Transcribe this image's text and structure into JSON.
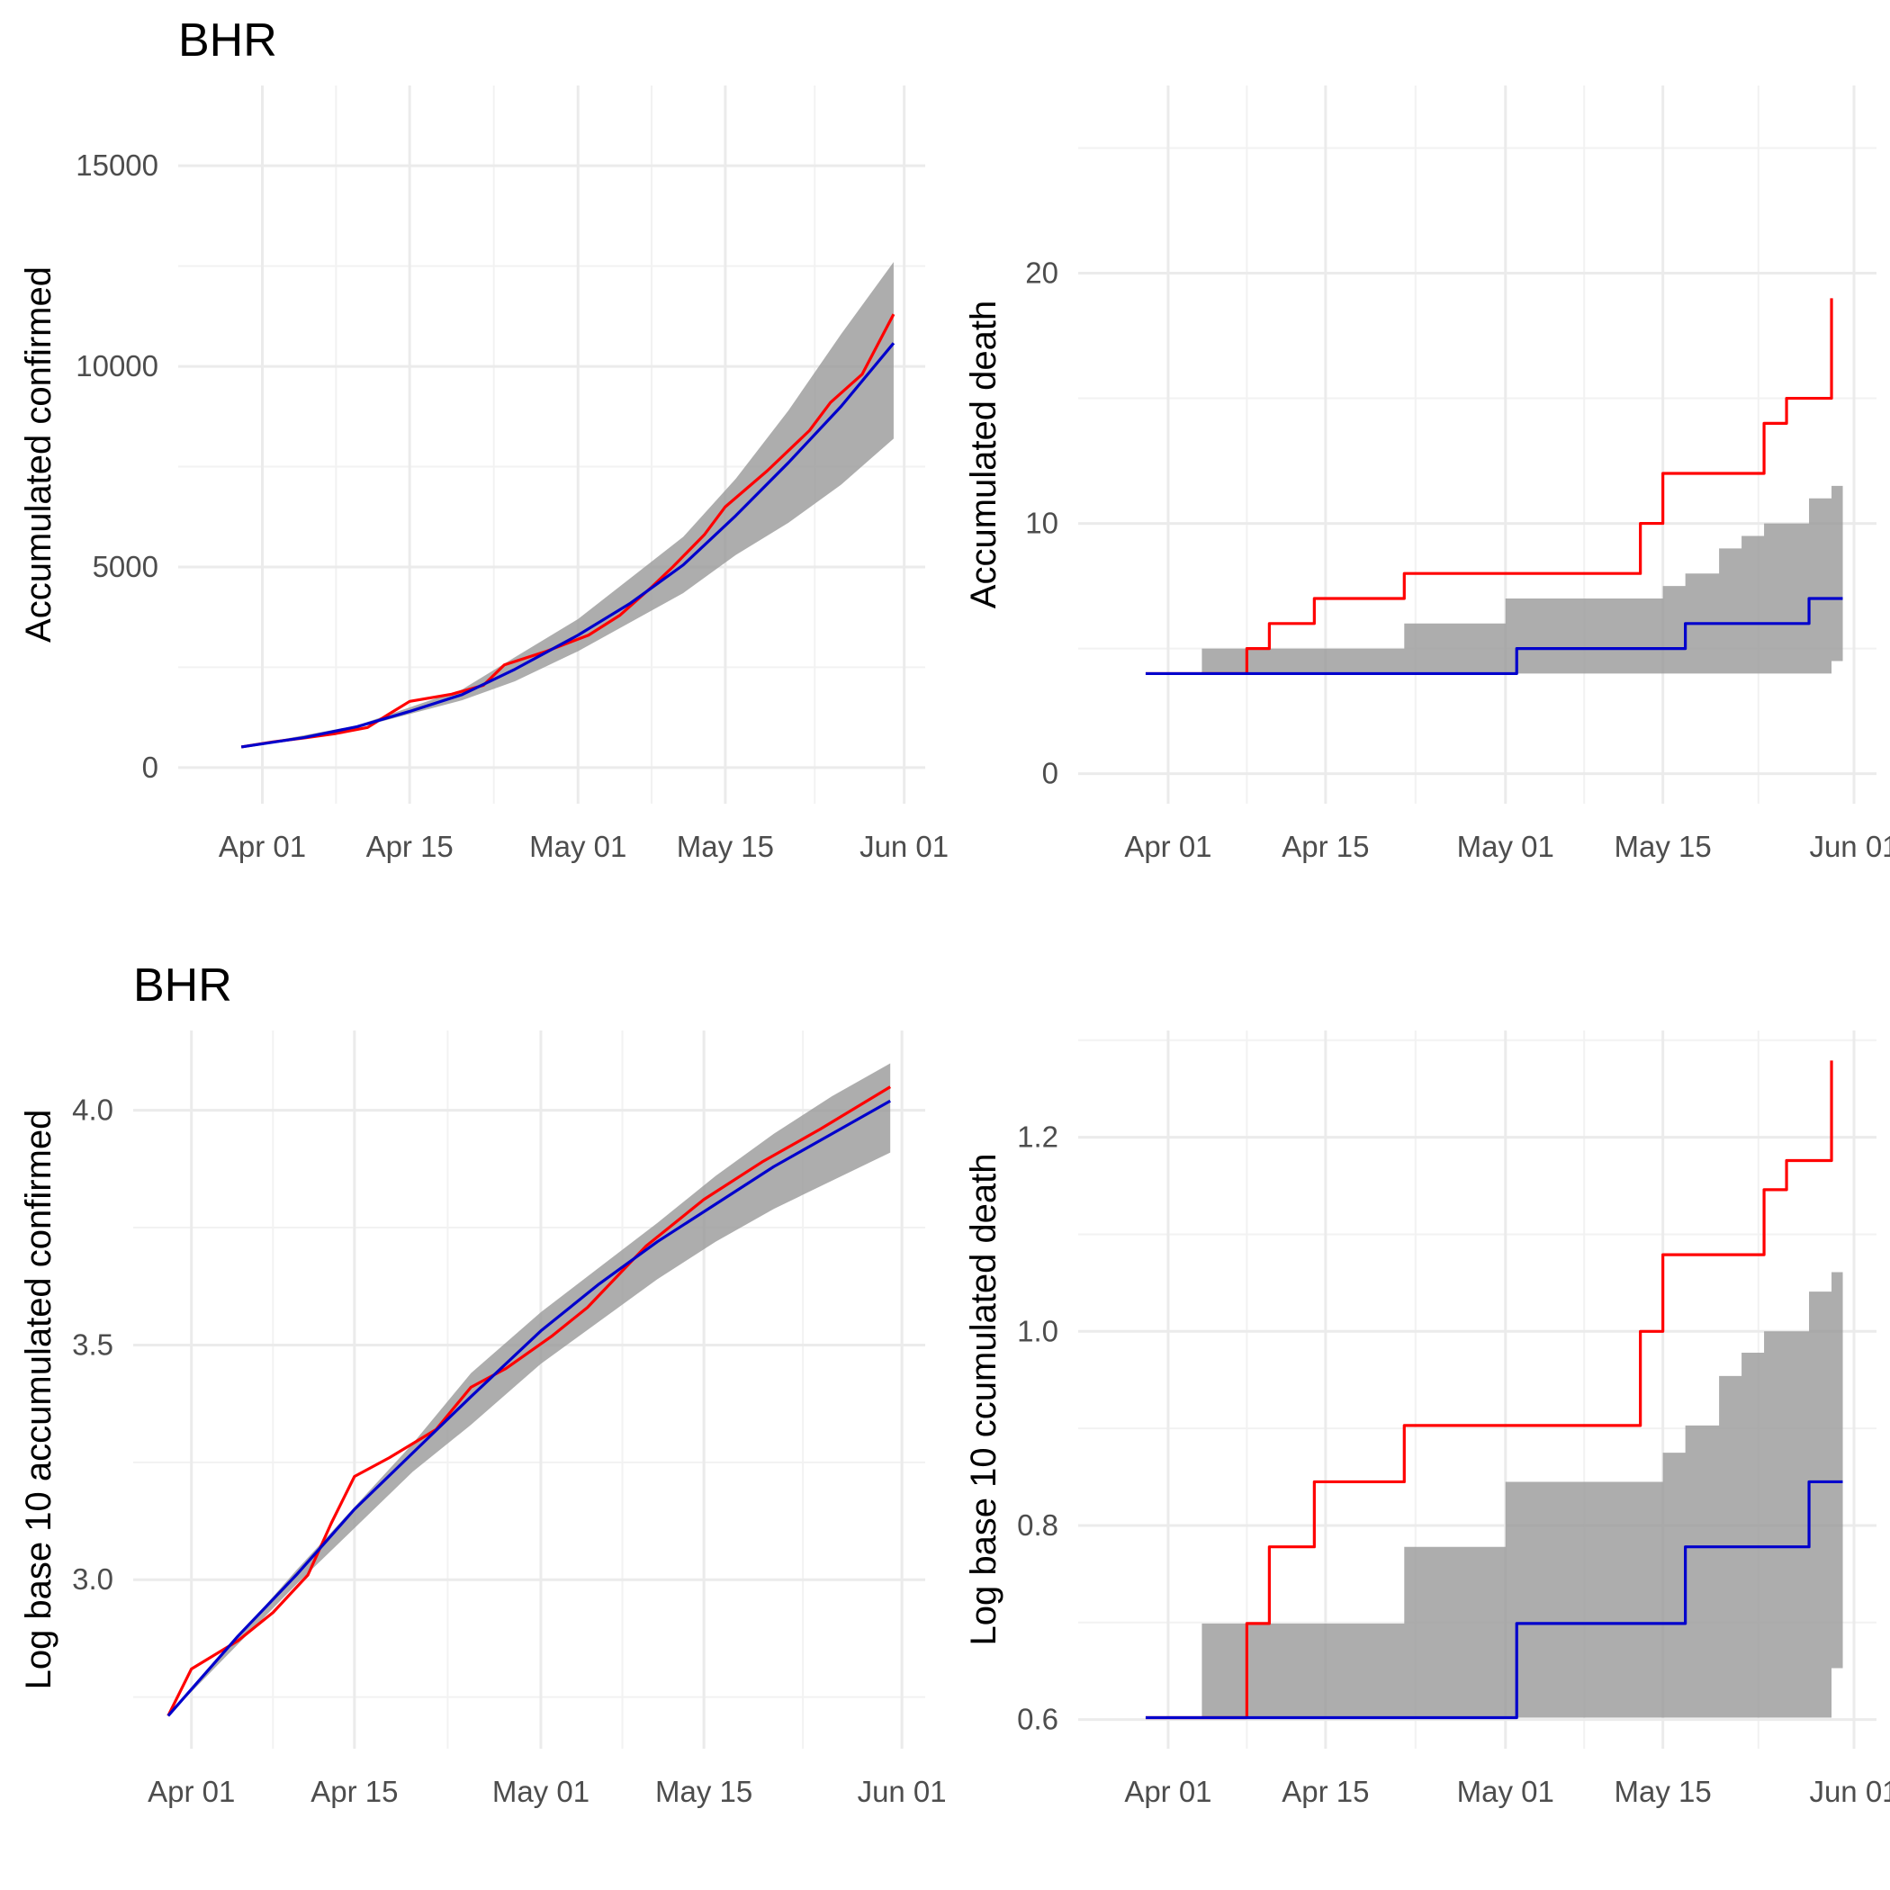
{
  "colors": {
    "observed": "#ff0000",
    "fitted": "#0000cc",
    "band": "#999999",
    "grid": "#ebebeb",
    "tick_text": "#4d4d4d"
  },
  "chart_data": [
    {
      "type": "line",
      "title": "BHR",
      "ylabel": "Accumulated confirmed",
      "xlim": [
        "2020-03-24",
        "2020-06-03"
      ],
      "ylim": [
        -900,
        17000
      ],
      "x_ticks": [
        "Apr 01",
        "Apr 15",
        "May 01",
        "May 15",
        "Jun 01"
      ],
      "x_tick_dates": [
        "2020-04-01",
        "2020-04-15",
        "2020-05-01",
        "2020-05-15",
        "2020-06-01"
      ],
      "y_ticks": [
        0,
        5000,
        10000,
        15000
      ],
      "y_tick_labels": [
        "0",
        "5000",
        "10000",
        "15000"
      ],
      "series": [
        {
          "role": "observed",
          "x": [
            "2020-03-30",
            "2020-04-02",
            "2020-04-05",
            "2020-04-08",
            "2020-04-11",
            "2020-04-13",
            "2020-04-15",
            "2020-04-19",
            "2020-04-22",
            "2020-04-24",
            "2020-04-28",
            "2020-05-02",
            "2020-05-05",
            "2020-05-08",
            "2020-05-10",
            "2020-05-13",
            "2020-05-15",
            "2020-05-19",
            "2020-05-23",
            "2020-05-25",
            "2020-05-28",
            "2020-05-31"
          ],
          "values": [
            515,
            640,
            740,
            850,
            1000,
            1330,
            1650,
            1830,
            2050,
            2560,
            2900,
            3300,
            3800,
            4500,
            5000,
            5800,
            6500,
            7400,
            8400,
            9100,
            9800,
            11300
          ]
        },
        {
          "role": "fitted",
          "x": [
            "2020-03-30",
            "2020-04-05",
            "2020-04-10",
            "2020-04-15",
            "2020-04-20",
            "2020-04-25",
            "2020-05-01",
            "2020-05-06",
            "2020-05-11",
            "2020-05-16",
            "2020-05-21",
            "2020-05-26",
            "2020-05-31"
          ],
          "values": [
            515,
            750,
            1020,
            1400,
            1820,
            2450,
            3300,
            4100,
            5050,
            6280,
            7600,
            9000,
            10580
          ]
        },
        {
          "role": "band",
          "x": [
            "2020-03-30",
            "2020-04-10",
            "2020-04-20",
            "2020-04-25",
            "2020-05-01",
            "2020-05-11",
            "2020-05-16",
            "2020-05-21",
            "2020-05-26",
            "2020-05-31"
          ],
          "low": [
            515,
            990,
            1680,
            2150,
            2900,
            4350,
            5300,
            6100,
            7050,
            8200
          ],
          "high": [
            515,
            1050,
            1950,
            2750,
            3700,
            5750,
            7200,
            8900,
            10800,
            12600
          ]
        }
      ]
    },
    {
      "type": "line",
      "title": "",
      "ylabel": "Accumulated death",
      "xlim": [
        "2020-03-24",
        "2020-06-03"
      ],
      "ylim": [
        -1.2,
        27.5
      ],
      "x_ticks": [
        "Apr 01",
        "Apr 15",
        "May 01",
        "May 15",
        "Jun 01"
      ],
      "x_tick_dates": [
        "2020-04-01",
        "2020-04-15",
        "2020-05-01",
        "2020-05-15",
        "2020-06-01"
      ],
      "y_ticks": [
        0,
        10,
        20
      ],
      "y_tick_labels": [
        "0",
        "10",
        "20"
      ],
      "series": [
        {
          "role": "observed",
          "x": [
            "2020-03-30",
            "2020-04-06",
            "2020-04-08",
            "2020-04-10",
            "2020-04-14",
            "2020-04-22",
            "2020-05-11",
            "2020-05-13",
            "2020-05-15",
            "2020-05-22",
            "2020-05-24",
            "2020-05-26",
            "2020-05-28",
            "2020-05-30"
          ],
          "values": [
            4,
            4,
            5,
            6,
            7,
            8,
            8,
            10,
            12,
            12,
            14,
            15,
            15,
            19
          ],
          "step": true
        },
        {
          "role": "fitted",
          "x": [
            "2020-03-30",
            "2020-05-02",
            "2020-05-17",
            "2020-05-28",
            "2020-05-31"
          ],
          "values": [
            4,
            5,
            6,
            7,
            7
          ],
          "step": true
        },
        {
          "role": "band",
          "x": [
            "2020-03-30",
            "2020-04-04",
            "2020-04-22",
            "2020-05-01",
            "2020-05-13",
            "2020-05-15",
            "2020-05-17",
            "2020-05-20",
            "2020-05-22",
            "2020-05-24",
            "2020-05-26",
            "2020-05-28",
            "2020-05-30",
            "2020-05-31"
          ],
          "low": [
            4,
            4,
            4,
            4,
            4,
            4,
            4,
            4,
            4,
            4,
            4,
            4,
            4.5,
            4.5
          ],
          "high": [
            4,
            5,
            6,
            7,
            7,
            7.5,
            8,
            9,
            9.5,
            10,
            10,
            11,
            11.5,
            11.5
          ],
          "step": true
        }
      ]
    },
    {
      "type": "line",
      "title": "BHR",
      "ylabel": "Log base 10 accumulated confirmed",
      "xlim": [
        "2020-03-27",
        "2020-06-03"
      ],
      "ylim": [
        2.64,
        4.17
      ],
      "x_ticks": [
        "Apr 01",
        "Apr 15",
        "May 01",
        "May 15",
        "Jun 01"
      ],
      "x_tick_dates": [
        "2020-04-01",
        "2020-04-15",
        "2020-05-01",
        "2020-05-15",
        "2020-06-01"
      ],
      "y_ticks": [
        3.0,
        3.5,
        4.0
      ],
      "y_tick_labels": [
        "3.0",
        "3.5",
        "4.0"
      ],
      "series": [
        {
          "role": "observed",
          "x": [
            "2020-03-30",
            "2020-04-01",
            "2020-04-05",
            "2020-04-08",
            "2020-04-11",
            "2020-04-13",
            "2020-04-15",
            "2020-04-18",
            "2020-04-22",
            "2020-04-25",
            "2020-04-28",
            "2020-05-02",
            "2020-05-05",
            "2020-05-10",
            "2020-05-15",
            "2020-05-20",
            "2020-05-25",
            "2020-05-31"
          ],
          "values": [
            2.71,
            2.81,
            2.87,
            2.93,
            3.01,
            3.12,
            3.22,
            3.26,
            3.32,
            3.41,
            3.45,
            3.52,
            3.58,
            3.71,
            3.81,
            3.89,
            3.96,
            4.05
          ]
        },
        {
          "role": "fitted",
          "x": [
            "2020-03-30",
            "2020-04-05",
            "2020-04-10",
            "2020-04-15",
            "2020-04-20",
            "2020-04-25",
            "2020-05-01",
            "2020-05-06",
            "2020-05-11",
            "2020-05-16",
            "2020-05-21",
            "2020-05-26",
            "2020-05-31"
          ],
          "values": [
            2.71,
            2.88,
            3.01,
            3.15,
            3.27,
            3.39,
            3.53,
            3.63,
            3.72,
            3.8,
            3.88,
            3.95,
            4.02
          ]
        },
        {
          "role": "band",
          "x": [
            "2020-03-30",
            "2020-04-10",
            "2020-04-20",
            "2020-04-25",
            "2020-05-01",
            "2020-05-11",
            "2020-05-16",
            "2020-05-21",
            "2020-05-26",
            "2020-05-31"
          ],
          "low": [
            2.71,
            2.99,
            3.23,
            3.33,
            3.46,
            3.64,
            3.72,
            3.79,
            3.85,
            3.91
          ],
          "high": [
            2.71,
            3.02,
            3.29,
            3.44,
            3.57,
            3.76,
            3.86,
            3.95,
            4.03,
            4.1
          ]
        }
      ]
    },
    {
      "type": "line",
      "title": "",
      "ylabel": "Log base 10 ccumulated death",
      "xlim": [
        "2020-03-24",
        "2020-06-03"
      ],
      "ylim": [
        0.57,
        1.31
      ],
      "x_ticks": [
        "Apr 01",
        "Apr 15",
        "May 01",
        "May 15",
        "Jun 01"
      ],
      "x_tick_dates": [
        "2020-04-01",
        "2020-04-15",
        "2020-05-01",
        "2020-05-15",
        "2020-06-01"
      ],
      "y_ticks": [
        0.6,
        0.8,
        1.0,
        1.2
      ],
      "y_tick_labels": [
        "0.6",
        "0.8",
        "1.0",
        "1.2"
      ],
      "series": [
        {
          "role": "observed",
          "x": [
            "2020-03-30",
            "2020-04-06",
            "2020-04-08",
            "2020-04-10",
            "2020-04-14",
            "2020-04-22",
            "2020-05-11",
            "2020-05-13",
            "2020-05-15",
            "2020-05-22",
            "2020-05-24",
            "2020-05-26",
            "2020-05-28",
            "2020-05-30"
          ],
          "values": [
            0.602,
            0.602,
            0.699,
            0.778,
            0.845,
            0.903,
            0.903,
            1.0,
            1.079,
            1.079,
            1.146,
            1.176,
            1.176,
            1.279
          ],
          "step": true
        },
        {
          "role": "fitted",
          "x": [
            "2020-03-30",
            "2020-05-02",
            "2020-05-17",
            "2020-05-28",
            "2020-05-31"
          ],
          "values": [
            0.602,
            0.699,
            0.778,
            0.845,
            0.845
          ],
          "step": true
        },
        {
          "role": "band",
          "x": [
            "2020-03-30",
            "2020-04-04",
            "2020-04-22",
            "2020-05-01",
            "2020-05-13",
            "2020-05-15",
            "2020-05-17",
            "2020-05-20",
            "2020-05-22",
            "2020-05-24",
            "2020-05-26",
            "2020-05-28",
            "2020-05-30",
            "2020-05-31"
          ],
          "low": [
            0.602,
            0.602,
            0.602,
            0.602,
            0.602,
            0.602,
            0.602,
            0.602,
            0.602,
            0.602,
            0.602,
            0.602,
            0.653,
            0.653
          ],
          "high": [
            0.602,
            0.699,
            0.778,
            0.845,
            0.845,
            0.875,
            0.903,
            0.954,
            0.978,
            1.0,
            1.0,
            1.041,
            1.061,
            1.061
          ],
          "step": true
        }
      ]
    }
  ]
}
